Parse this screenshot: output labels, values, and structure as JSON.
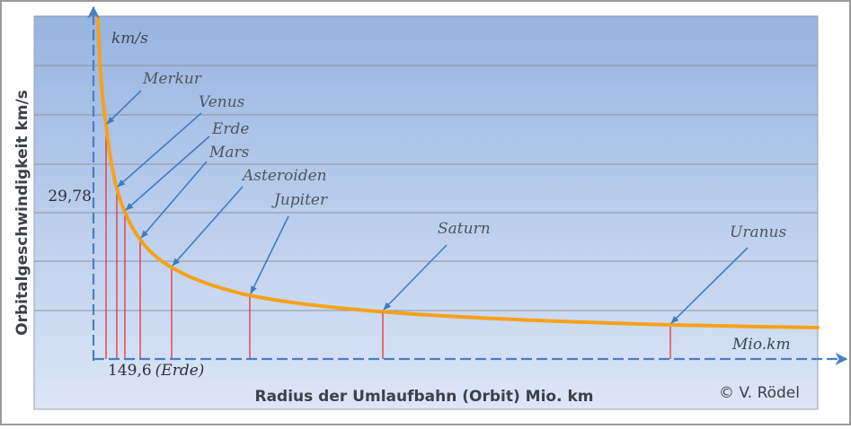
{
  "chart_data": {
    "type": "line",
    "xlabel": "Radius der Umlaufbahn (Orbit) Mio. km",
    "ylabel": "Orbitalgeschwindigkeit km/s",
    "x_unit_label": "Mio.km",
    "y_unit_label": "km/s",
    "y_tick_label": "29,78",
    "x_tick_label": "149,6",
    "x_tick_note": "(Erde)",
    "credit": "© V. Rödel",
    "planets": [
      {
        "name": "Merkur",
        "x": 57.9,
        "y": 47.4
      },
      {
        "name": "Venus",
        "x": 108.2,
        "y": 35.0
      },
      {
        "name": "Erde",
        "x": 149.6,
        "y": 29.78
      },
      {
        "name": "Mars",
        "x": 227.9,
        "y": 24.1
      },
      {
        "name": "Asteroiden",
        "x": 414,
        "y": 17.9
      },
      {
        "name": "Jupiter",
        "x": 778.5,
        "y": 13.1
      },
      {
        "name": "Saturn",
        "x": 1432,
        "y": 9.7
      },
      {
        "name": "Uranus",
        "x": 2867,
        "y": 6.8
      }
    ],
    "colors": {
      "curve": "#f7a11a",
      "marker": "#e8262b",
      "arrow": "#3f7cc4",
      "grid": "#8f9298"
    }
  }
}
